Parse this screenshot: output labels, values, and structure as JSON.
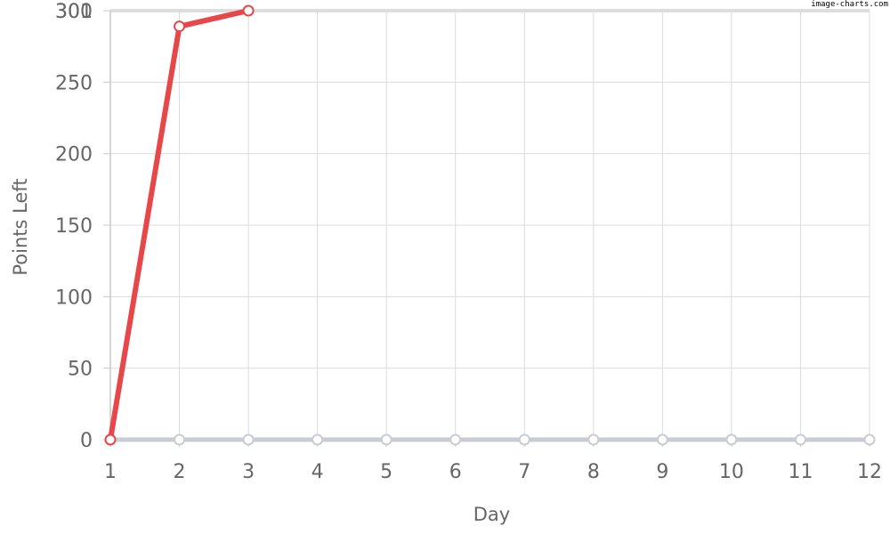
{
  "watermark": "image-charts.com",
  "chart_data": {
    "type": "line",
    "xlabel": "Day",
    "ylabel": "Points Left",
    "x": [
      1,
      2,
      3,
      4,
      5,
      6,
      7,
      8,
      9,
      10,
      11,
      12
    ],
    "x_tick_labels": [
      "1",
      "2",
      "3",
      "4",
      "5",
      "6",
      "7",
      "8",
      "9",
      "10",
      "11",
      "12"
    ],
    "ylim": [
      0,
      300
    ],
    "y_tick_labels": [
      "0",
      "50",
      "100",
      "150",
      "200",
      "250",
      "300",
      "301"
    ],
    "grid": true,
    "legend": "none",
    "series": [
      {
        "color": "#e84749",
        "x": [
          1,
          2,
          3
        ],
        "values": [
          0,
          289,
          301
        ]
      },
      {
        "color": "#c8cdd4",
        "x": [
          1,
          2,
          3,
          4,
          5,
          6,
          7,
          8,
          9,
          10,
          11,
          12
        ],
        "values": [
          0,
          0,
          0,
          0,
          0,
          0,
          0,
          0,
          0,
          0,
          0,
          0
        ]
      }
    ]
  }
}
